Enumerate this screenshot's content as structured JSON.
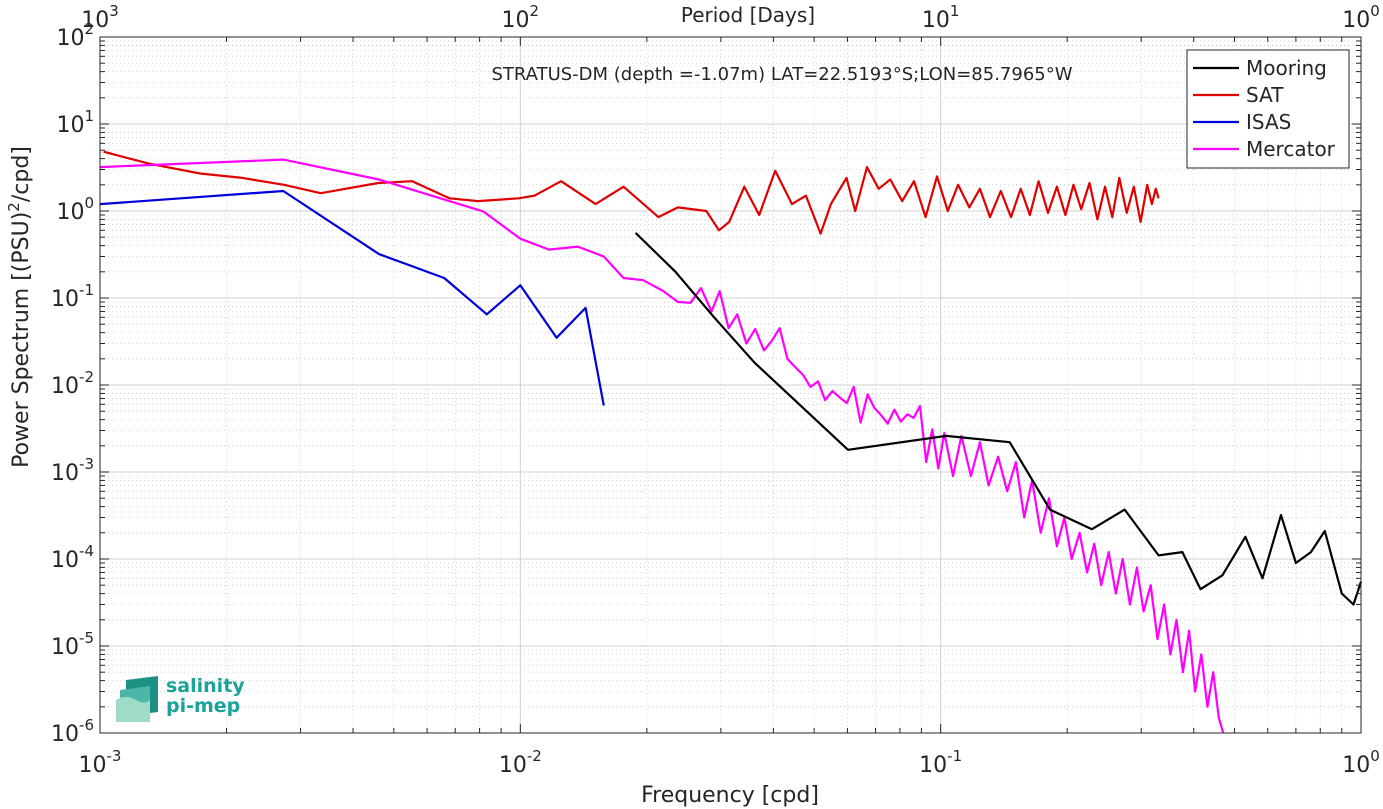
{
  "chart_data": {
    "type": "line",
    "title": "STRATUS-DM (depth =-1.07m) LAT=22.5193°S;LON=85.7965°W",
    "xlabel": "Frequency [cpd]",
    "ylabel_main": "Power Spectrum [(PSU)",
    "ylabel_sup": "2",
    "ylabel_tail": "/cpd]",
    "top_xlabel": "Period [Days]",
    "xscale": "log",
    "yscale": "log",
    "xlim": [
      0.001,
      1
    ],
    "ylim": [
      1e-06,
      100
    ],
    "grid": true,
    "legend_position": "top-right",
    "x_ticks": [
      {
        "value": 0.001,
        "base": "10",
        "exp": "-3"
      },
      {
        "value": 0.01,
        "base": "10",
        "exp": "-2"
      },
      {
        "value": 0.1,
        "base": "10",
        "exp": "-1"
      },
      {
        "value": 1,
        "base": "10",
        "exp": "0"
      }
    ],
    "y_ticks": [
      {
        "value": 1e-06,
        "base": "10",
        "exp": "-6"
      },
      {
        "value": 1e-05,
        "base": "10",
        "exp": "-5"
      },
      {
        "value": 0.0001,
        "base": "10",
        "exp": "-4"
      },
      {
        "value": 0.001,
        "base": "10",
        "exp": "-3"
      },
      {
        "value": 0.01,
        "base": "10",
        "exp": "-2"
      },
      {
        "value": 0.1,
        "base": "10",
        "exp": "-1"
      },
      {
        "value": 1,
        "base": "10",
        "exp": "0"
      },
      {
        "value": 10,
        "base": "10",
        "exp": "1"
      },
      {
        "value": 100,
        "base": "10",
        "exp": "2"
      }
    ],
    "top_ticks": [
      {
        "value": 0.001,
        "base": "10",
        "exp": "3"
      },
      {
        "value": 0.01,
        "base": "10",
        "exp": "2"
      },
      {
        "value": 0.1,
        "base": "10",
        "exp": "1"
      },
      {
        "value": 1,
        "base": "10",
        "exp": "0"
      }
    ],
    "series": [
      {
        "name": "Mooring",
        "color": "#000000",
        "x": [
          0.0188,
          0.0234,
          0.0289,
          0.0361,
          0.0602,
          0.103,
          0.146,
          0.182,
          0.229,
          0.274,
          0.33,
          0.376,
          0.415,
          0.468,
          0.531,
          0.583,
          0.645,
          0.7,
          0.76,
          0.82,
          0.9,
          0.96,
          1.0
        ],
        "y": [
          0.56,
          0.2,
          0.06,
          0.018,
          0.0018,
          0.0026,
          0.0022,
          0.00037,
          0.00022,
          0.00037,
          0.00011,
          0.00012,
          4.5e-05,
          6.5e-05,
          0.00018,
          6e-05,
          0.00032,
          9e-05,
          0.00012,
          0.00021,
          4e-05,
          3e-05,
          5.5e-05
        ]
      },
      {
        "name": "SAT",
        "color": "#e00000",
        "x": [
          0.00102,
          0.00131,
          0.00173,
          0.00218,
          0.00274,
          0.00335,
          0.00459,
          0.00553,
          0.00678,
          0.00793,
          0.00991,
          0.0108,
          0.0125,
          0.0151,
          0.0176,
          0.0213,
          0.0237,
          0.0277,
          0.0297,
          0.0314,
          0.0341,
          0.037,
          0.0404,
          0.0443,
          0.0478,
          0.0518,
          0.0548,
          0.0597,
          0.0626,
          0.0668,
          0.0712,
          0.0759,
          0.081,
          0.0864,
          0.0921,
          0.098,
          0.104,
          0.11,
          0.117,
          0.124,
          0.131,
          0.139,
          0.147,
          0.155,
          0.163,
          0.171,
          0.18,
          0.189,
          0.198,
          0.207,
          0.216,
          0.226,
          0.236,
          0.246,
          0.256,
          0.266,
          0.277,
          0.288,
          0.299,
          0.31,
          0.318,
          0.325,
          0.33
        ],
        "y": [
          4.8,
          3.5,
          2.7,
          2.4,
          2.0,
          1.6,
          2.1,
          2.2,
          1.4,
          1.3,
          1.4,
          1.5,
          2.2,
          1.2,
          1.9,
          0.85,
          1.1,
          1.0,
          0.6,
          0.75,
          1.9,
          0.9,
          2.9,
          1.2,
          1.5,
          0.55,
          1.2,
          2.4,
          1.0,
          3.2,
          1.8,
          2.3,
          1.3,
          2.2,
          0.85,
          2.5,
          1.0,
          2.0,
          1.1,
          1.8,
          0.85,
          1.7,
          0.85,
          1.8,
          0.9,
          2.2,
          0.95,
          1.9,
          0.9,
          2.0,
          1.05,
          2.1,
          0.8,
          1.9,
          0.85,
          2.4,
          0.95,
          1.9,
          0.75,
          2.0,
          1.2,
          1.8,
          1.4
        ]
      },
      {
        "name": "ISAS",
        "color": "#0000dd",
        "x": [
          0.001,
          0.00273,
          0.00461,
          0.00659,
          0.00832,
          0.01,
          0.0122,
          0.0143,
          0.0158
        ],
        "y": [
          1.2,
          1.7,
          0.32,
          0.17,
          0.065,
          0.14,
          0.035,
          0.077,
          0.0058
        ]
      },
      {
        "name": "Mercator",
        "color": "#ff00ff",
        "x": [
          0.001,
          0.00273,
          0.00461,
          0.00816,
          0.01,
          0.0117,
          0.0137,
          0.0158,
          0.0176,
          0.0196,
          0.0219,
          0.0237,
          0.0254,
          0.0269,
          0.0285,
          0.0298,
          0.0313,
          0.0328,
          0.0345,
          0.0362,
          0.038,
          0.0396,
          0.0414,
          0.0432,
          0.0451,
          0.0471,
          0.049,
          0.0511,
          0.0531,
          0.0553,
          0.0575,
          0.0598,
          0.0621,
          0.0645,
          0.067,
          0.0695,
          0.0721,
          0.0748,
          0.0776,
          0.0804,
          0.0833,
          0.0862,
          0.0893,
          0.0924,
          0.0955,
          0.0987,
          0.102,
          0.107,
          0.112,
          0.118,
          0.124,
          0.13,
          0.137,
          0.144,
          0.151,
          0.158,
          0.165,
          0.173,
          0.181,
          0.189,
          0.197,
          0.205,
          0.214,
          0.223,
          0.232,
          0.241,
          0.251,
          0.261,
          0.271,
          0.282,
          0.293,
          0.304,
          0.316,
          0.328,
          0.34,
          0.352,
          0.364,
          0.377,
          0.39,
          0.403,
          0.417,
          0.431,
          0.445,
          0.459,
          0.47
        ],
        "y": [
          3.2,
          3.9,
          2.3,
          0.99,
          0.48,
          0.36,
          0.39,
          0.3,
          0.17,
          0.16,
          0.12,
          0.09,
          0.088,
          0.13,
          0.07,
          0.12,
          0.045,
          0.065,
          0.03,
          0.044,
          0.025,
          0.032,
          0.045,
          0.02,
          0.016,
          0.013,
          0.0095,
          0.011,
          0.0067,
          0.0085,
          0.0072,
          0.0062,
          0.0095,
          0.0037,
          0.0078,
          0.0055,
          0.0045,
          0.0036,
          0.0052,
          0.0038,
          0.0046,
          0.0042,
          0.0057,
          0.0013,
          0.0031,
          0.0011,
          0.0028,
          0.0009,
          0.0026,
          0.0009,
          0.0022,
          0.0007,
          0.0015,
          0.0006,
          0.0013,
          0.0003,
          0.0008,
          0.0002,
          0.0005,
          0.00014,
          0.0003,
          0.0001,
          0.0002,
          7e-05,
          0.00015,
          5e-05,
          0.00012,
          4e-05,
          0.0001,
          3e-05,
          8e-05,
          2.5e-05,
          5e-05,
          1.2e-05,
          3e-05,
          8e-06,
          2e-05,
          5e-06,
          1.5e-05,
          3e-06,
          8e-06,
          2e-06,
          5e-06,
          1.5e-06,
          1e-06
        ]
      }
    ]
  },
  "logo": {
    "line1": "salinity",
    "line2": "pi-mep",
    "color": "#1aa398"
  }
}
